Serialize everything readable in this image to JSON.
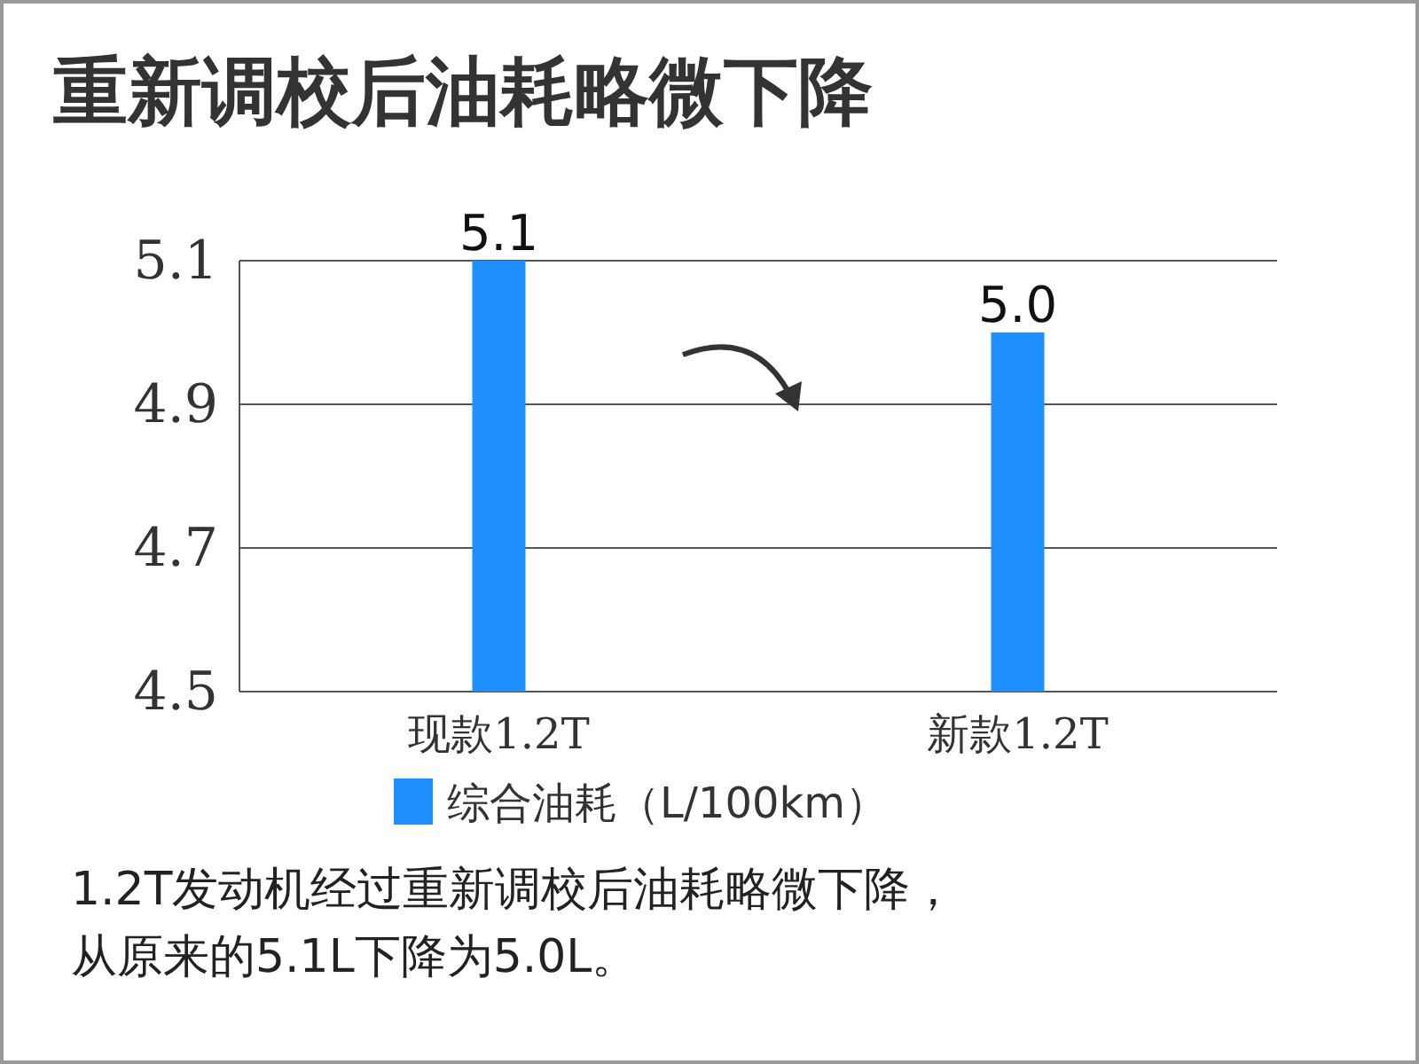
{
  "chart_data": {
    "type": "bar",
    "title": "重新调校后油耗略微下降",
    "categories": [
      "现款1.2T",
      "新款1.2T"
    ],
    "series": [
      {
        "name": "综合油耗（L/100km）",
        "color": "#1e8fff",
        "values": [
          5.1,
          5.0
        ],
        "value_labels": [
          "5.1",
          "5.0"
        ]
      }
    ],
    "ylim": [
      4.5,
      5.1
    ],
    "yticks": [
      4.5,
      4.7,
      4.9,
      5.1
    ],
    "grid": "y",
    "legend": "bottom",
    "annotations": [
      "1.2T发动机经过重新调校后油耗略微下降，",
      "从原来的5.1L下降为5.0L。"
    ]
  }
}
